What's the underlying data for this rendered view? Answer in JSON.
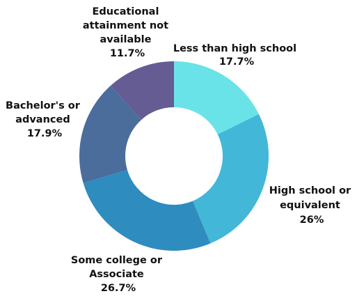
{
  "chart_data": {
    "type": "pie",
    "donut": true,
    "title": "",
    "categories": [
      "Less than high school",
      "High school or equivalent",
      "Some college or Associate",
      "Bachelor's or advanced",
      "Educational attainment not available"
    ],
    "values": [
      17.7,
      26,
      26.7,
      17.9,
      11.7
    ],
    "value_labels": [
      "17.7%",
      "26%",
      "26.7%",
      "17.9%",
      "11.7%"
    ],
    "colors": [
      "#6ae3e8",
      "#43b7d8",
      "#2e8cbf",
      "#4a6d9c",
      "#655c94"
    ],
    "legend": "none",
    "label_placement": "outside"
  },
  "labels": [
    {
      "lines": [
        "Less than high school"
      ],
      "value": "17.7%"
    },
    {
      "lines": [
        "High school or",
        "equivalent"
      ],
      "value": "26%"
    },
    {
      "lines": [
        "Some college or",
        "Associate"
      ],
      "value": "26.7%"
    },
    {
      "lines": [
        "Bachelor's or",
        "advanced"
      ],
      "value": "17.9%"
    },
    {
      "lines": [
        "Educational",
        "attainment not",
        "available"
      ],
      "value": "11.7%"
    }
  ]
}
